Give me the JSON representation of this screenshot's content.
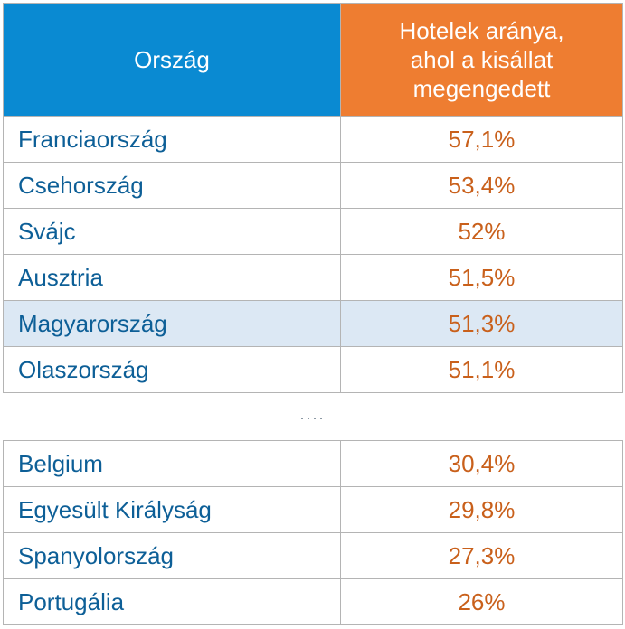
{
  "header": {
    "country_label": "Ország",
    "value_label_lines": [
      "Hotelek aránya,",
      "ahol a kisállat",
      "megengedett"
    ]
  },
  "colors": {
    "country_header_bg": "#0a8ad2",
    "value_header_bg": "#ee7d31",
    "country_text": "#0d5f97",
    "value_text": "#c9601b",
    "highlight_row_bg": "#dce8f4",
    "border": "#b4b4b4"
  },
  "top_rows": [
    {
      "country": "Franciaország",
      "value": "57,1%"
    },
    {
      "country": "Csehország",
      "value": "53,4%"
    },
    {
      "country": "Svájc",
      "value": "52%"
    },
    {
      "country": "Ausztria",
      "value": "51,5%"
    },
    {
      "country": "Magyarország",
      "value": "51,3%",
      "highlighted": true
    },
    {
      "country": "Olaszország",
      "value": "51,1%"
    }
  ],
  "separator": "....",
  "bottom_rows": [
    {
      "country": "Belgium",
      "value": "30,4%"
    },
    {
      "country": "Egyesült Királyság",
      "value": "29,8%"
    },
    {
      "country": "Spanyolország",
      "value": "27,3%"
    },
    {
      "country": "Portugália",
      "value": "26%"
    }
  ]
}
